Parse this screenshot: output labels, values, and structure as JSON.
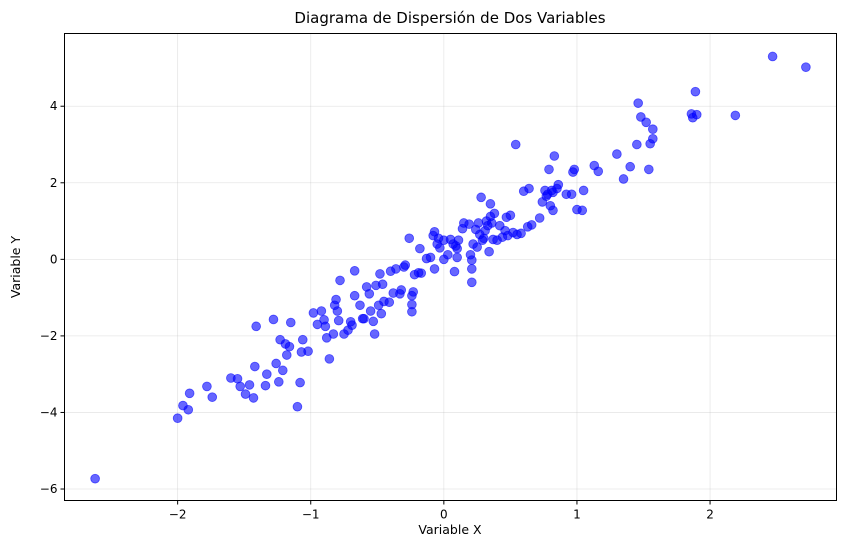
{
  "chart_data": {
    "type": "scatter",
    "title": "Diagrama de Dispersión de Dos Variables",
    "xlabel": "Variable X",
    "ylabel": "Variable Y",
    "xlim": [
      -2.85,
      2.95
    ],
    "ylim": [
      -6.3,
      5.9
    ],
    "xticks": [
      -2,
      -1,
      0,
      1,
      2
    ],
    "yticks": [
      -6,
      -4,
      -2,
      0,
      2,
      4
    ],
    "xtick_labels": [
      "−2",
      "−1",
      "0",
      "1",
      "2"
    ],
    "ytick_labels": [
      "−6",
      "−4",
      "−2",
      "0",
      "2",
      "4"
    ],
    "grid": true,
    "marker_color": "#0000ff",
    "marker_alpha": 0.6,
    "series": [
      {
        "points": [
          [
            -2.62,
            -5.73
          ],
          [
            -2.0,
            -4.15
          ],
          [
            -1.96,
            -3.82
          ],
          [
            -1.92,
            -3.93
          ],
          [
            -1.91,
            -3.5
          ],
          [
            -1.78,
            -3.32
          ],
          [
            -1.74,
            -3.6
          ],
          [
            -1.6,
            -3.1
          ],
          [
            -1.55,
            -3.12
          ],
          [
            -1.53,
            -3.32
          ],
          [
            -1.49,
            -3.52
          ],
          [
            -1.46,
            -3.28
          ],
          [
            -1.43,
            -3.62
          ],
          [
            -1.42,
            -2.8
          ],
          [
            -1.41,
            -1.75
          ],
          [
            -1.34,
            -3.3
          ],
          [
            -1.33,
            -3.0
          ],
          [
            -1.28,
            -1.57
          ],
          [
            -1.26,
            -2.72
          ],
          [
            -1.24,
            -3.2
          ],
          [
            -1.23,
            -2.1
          ],
          [
            -1.21,
            -2.9
          ],
          [
            -1.19,
            -2.21
          ],
          [
            -1.18,
            -2.5
          ],
          [
            -1.16,
            -2.28
          ],
          [
            -1.15,
            -1.65
          ],
          [
            -1.1,
            -3.85
          ],
          [
            -1.08,
            -3.22
          ],
          [
            -1.07,
            -2.42
          ],
          [
            -1.06,
            -2.1
          ],
          [
            -1.02,
            -2.4
          ],
          [
            -0.98,
            -1.4
          ],
          [
            -0.95,
            -1.7
          ],
          [
            -0.92,
            -1.35
          ],
          [
            -0.9,
            -1.58
          ],
          [
            -0.89,
            -1.75
          ],
          [
            -0.88,
            -2.05
          ],
          [
            -0.86,
            -2.6
          ],
          [
            -0.83,
            -1.95
          ],
          [
            -0.82,
            -1.2
          ],
          [
            -0.81,
            -1.05
          ],
          [
            -0.8,
            -1.35
          ],
          [
            -0.79,
            -1.6
          ],
          [
            -0.78,
            -0.55
          ],
          [
            -0.75,
            -1.95
          ],
          [
            -0.72,
            -1.85
          ],
          [
            -0.7,
            -1.63
          ],
          [
            -0.69,
            -1.72
          ],
          [
            -0.67,
            -0.3
          ],
          [
            -0.67,
            -0.95
          ],
          [
            -0.63,
            -1.2
          ],
          [
            -0.61,
            -1.55
          ],
          [
            -0.6,
            -1.55
          ],
          [
            -0.58,
            -0.72
          ],
          [
            -0.56,
            -0.9
          ],
          [
            -0.55,
            -1.35
          ],
          [
            -0.53,
            -1.62
          ],
          [
            -0.52,
            -1.95
          ],
          [
            -0.51,
            -0.68
          ],
          [
            -0.49,
            -1.2
          ],
          [
            -0.48,
            -0.38
          ],
          [
            -0.47,
            -1.42
          ],
          [
            -0.46,
            -0.65
          ],
          [
            -0.45,
            -1.1
          ],
          [
            -0.41,
            -1.12
          ],
          [
            -0.4,
            -0.31
          ],
          [
            -0.38,
            -0.88
          ],
          [
            -0.36,
            -0.25
          ],
          [
            -0.33,
            -0.9
          ],
          [
            -0.32,
            -0.8
          ],
          [
            -0.3,
            -0.2
          ],
          [
            -0.29,
            -0.15
          ],
          [
            -0.26,
            0.55
          ],
          [
            -0.24,
            -1.37
          ],
          [
            -0.24,
            -1.18
          ],
          [
            -0.24,
            -0.95
          ],
          [
            -0.23,
            -0.85
          ],
          [
            -0.22,
            -0.4
          ],
          [
            -0.19,
            -0.35
          ],
          [
            -0.18,
            0.28
          ],
          [
            -0.17,
            -0.36
          ],
          [
            -0.13,
            0.02
          ],
          [
            -0.1,
            0.05
          ],
          [
            -0.08,
            0.62
          ],
          [
            -0.07,
            0.72
          ],
          [
            -0.07,
            -0.25
          ],
          [
            -0.05,
            0.4
          ],
          [
            -0.04,
            0.55
          ],
          [
            -0.03,
            0.3
          ],
          [
            0.0,
            0.5
          ],
          [
            0.0,
            0.0
          ],
          [
            0.03,
            0.12
          ],
          [
            0.05,
            0.52
          ],
          [
            0.07,
            0.4
          ],
          [
            0.08,
            -0.32
          ],
          [
            0.09,
            0.35
          ],
          [
            0.1,
            0.28
          ],
          [
            0.1,
            0.05
          ],
          [
            0.11,
            0.5
          ],
          [
            0.14,
            0.8
          ],
          [
            0.15,
            0.95
          ],
          [
            0.19,
            0.92
          ],
          [
            0.2,
            0.12
          ],
          [
            0.21,
            -0.02
          ],
          [
            0.21,
            -0.25
          ],
          [
            0.21,
            -0.6
          ],
          [
            0.22,
            0.4
          ],
          [
            0.24,
            0.78
          ],
          [
            0.25,
            0.32
          ],
          [
            0.26,
            0.95
          ],
          [
            0.27,
            0.65
          ],
          [
            0.28,
            1.62
          ],
          [
            0.29,
            0.5
          ],
          [
            0.3,
            0.55
          ],
          [
            0.31,
            0.75
          ],
          [
            0.32,
            1.0
          ],
          [
            0.33,
            0.88
          ],
          [
            0.34,
            0.2
          ],
          [
            0.35,
            1.45
          ],
          [
            0.35,
            1.12
          ],
          [
            0.36,
            0.95
          ],
          [
            0.37,
            0.52
          ],
          [
            0.38,
            1.2
          ],
          [
            0.4,
            0.5
          ],
          [
            0.42,
            0.88
          ],
          [
            0.44,
            0.58
          ],
          [
            0.46,
            0.75
          ],
          [
            0.47,
            1.1
          ],
          [
            0.48,
            0.62
          ],
          [
            0.5,
            1.15
          ],
          [
            0.52,
            0.7
          ],
          [
            0.54,
            3.0
          ],
          [
            0.55,
            0.65
          ],
          [
            0.58,
            0.68
          ],
          [
            0.6,
            1.78
          ],
          [
            0.63,
            0.85
          ],
          [
            0.64,
            1.85
          ],
          [
            0.66,
            0.9
          ],
          [
            0.72,
            1.08
          ],
          [
            0.74,
            1.5
          ],
          [
            0.76,
            1.8
          ],
          [
            0.77,
            1.65
          ],
          [
            0.78,
            1.7
          ],
          [
            0.79,
            2.35
          ],
          [
            0.8,
            1.4
          ],
          [
            0.81,
            1.8
          ],
          [
            0.82,
            1.75
          ],
          [
            0.82,
            1.28
          ],
          [
            0.83,
            2.7
          ],
          [
            0.85,
            1.85
          ],
          [
            0.86,
            1.95
          ],
          [
            0.92,
            1.7
          ],
          [
            0.96,
            1.7
          ],
          [
            0.97,
            2.28
          ],
          [
            0.98,
            2.35
          ],
          [
            1.0,
            1.3
          ],
          [
            1.04,
            1.28
          ],
          [
            1.05,
            1.8
          ],
          [
            1.13,
            2.45
          ],
          [
            1.16,
            2.3
          ],
          [
            1.3,
            2.75
          ],
          [
            1.35,
            2.1
          ],
          [
            1.4,
            2.42
          ],
          [
            1.45,
            3.0
          ],
          [
            1.46,
            4.08
          ],
          [
            1.48,
            3.72
          ],
          [
            1.52,
            3.58
          ],
          [
            1.54,
            2.35
          ],
          [
            1.55,
            3.02
          ],
          [
            1.57,
            3.4
          ],
          [
            1.57,
            3.15
          ],
          [
            1.86,
            3.8
          ],
          [
            1.87,
            3.7
          ],
          [
            1.89,
            4.38
          ],
          [
            1.9,
            3.78
          ],
          [
            2.19,
            3.76
          ],
          [
            2.47,
            5.3
          ],
          [
            2.72,
            5.02
          ]
        ]
      }
    ]
  }
}
